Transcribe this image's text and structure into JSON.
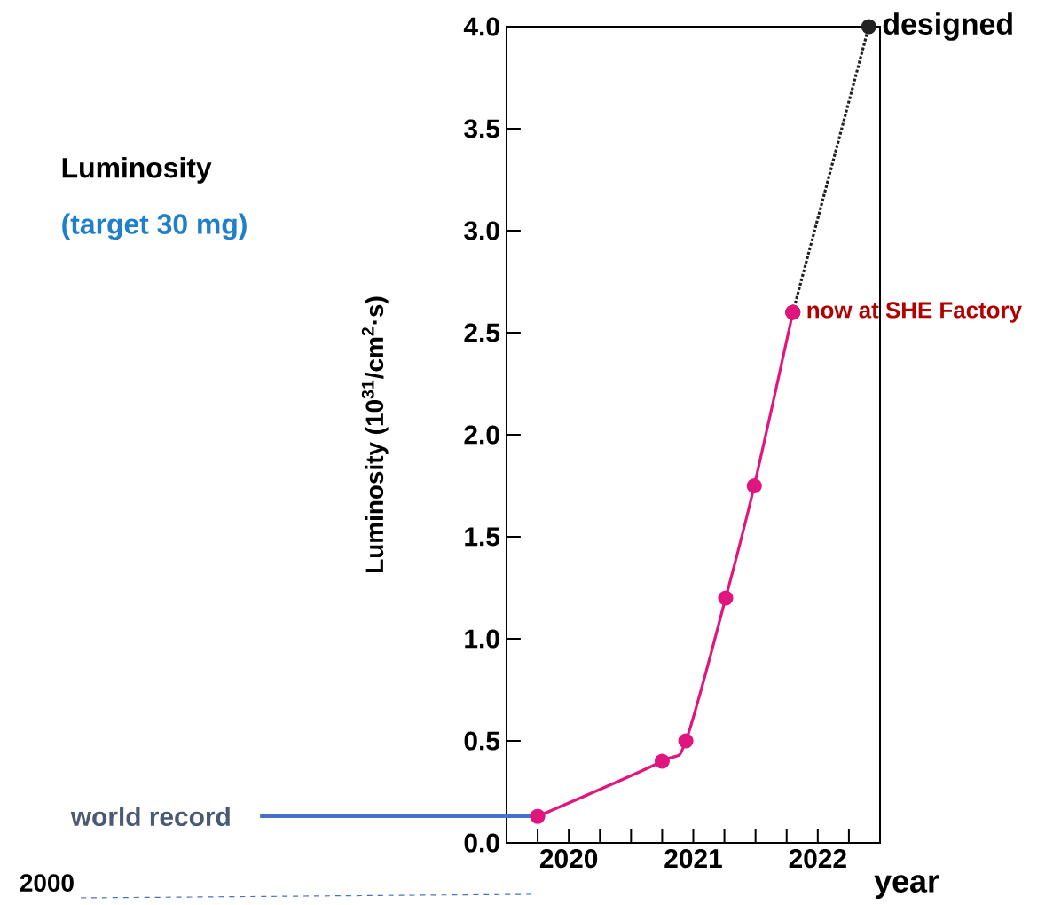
{
  "chart_data": {
    "type": "line",
    "xlabel": "year",
    "ylabel": "Luminosity  (10$^{31}$/cm$^{2}$·s)",
    "xlim": [
      2019.5,
      2022.5
    ],
    "xticks": [
      {
        "value": 2019.75,
        "label": null
      },
      {
        "value": 2020,
        "label": "2020"
      },
      {
        "value": 2020.25,
        "label": null
      },
      {
        "value": 2020.5,
        "label": null
      },
      {
        "value": 2020.75,
        "label": null
      },
      {
        "value": 2021,
        "label": "2021"
      },
      {
        "value": 2021.25,
        "label": null
      },
      {
        "value": 2021.5,
        "label": null
      },
      {
        "value": 2021.75,
        "label": null
      },
      {
        "value": 2022,
        "label": "2022"
      },
      {
        "value": 2022.25,
        "label": null
      }
    ],
    "ylim": [
      0,
      4.0
    ],
    "yticks": [
      {
        "value": 0,
        "label": "0.0"
      },
      {
        "value": 0.5,
        "label": "0.5"
      },
      {
        "value": 1.0,
        "label": "1.0"
      },
      {
        "value": 1.5,
        "label": "1.5"
      },
      {
        "value": 2.0,
        "label": "2.0"
      },
      {
        "value": 2.5,
        "label": "2.5"
      },
      {
        "value": 3.0,
        "label": "3.0"
      },
      {
        "value": 3.5,
        "label": "3.5"
      },
      {
        "value": 4.0,
        "label": "4.0"
      }
    ],
    "grid": false,
    "marker": "circle",
    "series": [
      {
        "color": "#e0157f",
        "line_style": "solid",
        "x": [
          2019.75,
          2020.75,
          2020.94,
          2021.26,
          2021.49,
          2021.8
        ],
        "values": [
          0.13,
          0.4,
          0.5,
          1.2,
          1.75,
          2.6
        ]
      },
      {
        "color": "#222222",
        "line_style": "dotted",
        "x": [
          2021.8,
          2022.41
        ],
        "values": [
          2.6,
          4.0
        ]
      }
    ],
    "ref_lines": [
      {
        "axis": "y",
        "value": 0.13,
        "label": "world record",
        "color": "#4472c4"
      }
    ],
    "annotations": [
      {
        "text": "designed",
        "x": 2022.41,
        "y": 4.0
      },
      {
        "text": "now at SHE Factory",
        "x": 2021.8,
        "y": 2.6
      },
      "Luminosity",
      "(target 30 mg)",
      "2000"
    ]
  }
}
